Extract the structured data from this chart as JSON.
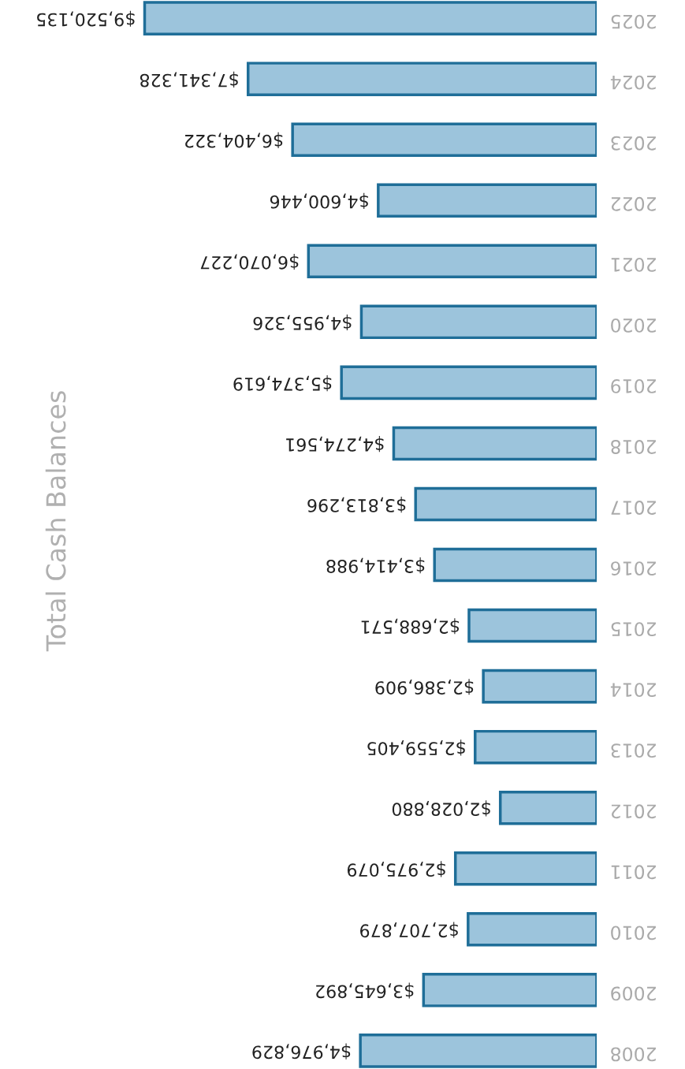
{
  "chart_data": {
    "type": "bar",
    "orientation": "horizontal",
    "title": "Total Cash Balances",
    "categories": [
      "2025",
      "2024",
      "2023",
      "2022",
      "2021",
      "2020",
      "2019",
      "2018",
      "2017",
      "2016",
      "2015",
      "2014",
      "2013",
      "2012",
      "2011",
      "2010",
      "2009",
      "2008"
    ],
    "values": [
      9520135,
      7341328,
      6404322,
      4600446,
      6070227,
      4955326,
      5374619,
      4274561,
      3813296,
      3414988,
      2688571,
      2386909,
      2559405,
      2028880,
      2975079,
      2707879,
      3645892,
      4976829
    ],
    "value_labels": [
      "$9,520,135",
      "$7,341,328",
      "$6,404,322",
      "$4,600,446",
      "$6,070,227",
      "$4,955,326",
      "$5,374,619",
      "$4,274,561",
      "$3,813,296",
      "$3,414,988",
      "$2,688,571",
      "$2,386,909",
      "$2,559,405",
      "$2,028,880",
      "$2,975,079",
      "$2,707,879",
      "$3,645,892",
      "$4,976,829"
    ],
    "color": "#9cc4dc",
    "grid": false,
    "legend": false
  }
}
